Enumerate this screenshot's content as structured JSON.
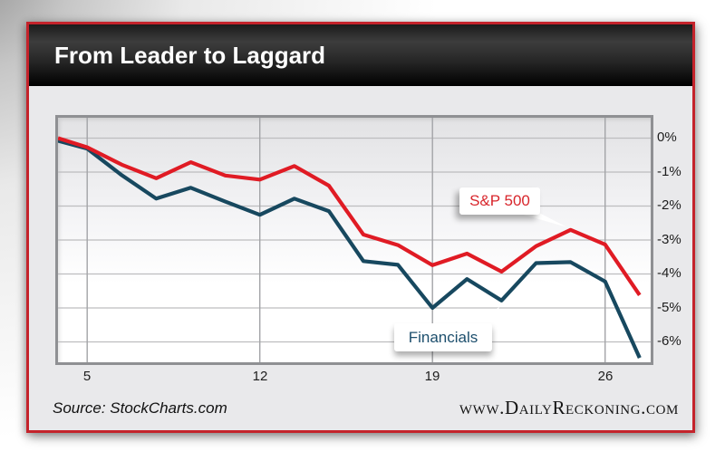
{
  "header": {
    "title": "From Leader to Laggard"
  },
  "footer": {
    "source": "Source: StockCharts.com",
    "website": "www.DailyReckoning.com"
  },
  "colors": {
    "frame_border": "#c4232b",
    "header_bg": "#1c1c1c",
    "body_bg": "#e9e9eb",
    "plot_border": "#8f9093",
    "grid_horizontal": "#bdbdbf",
    "grid_vertical": "#a3a4a7",
    "sp500_line": "#e01b24",
    "financials_line": "#17485f",
    "sp500_label": "#d8262c",
    "financials_label": "#1d4f6d"
  },
  "chart_data": {
    "type": "line",
    "title": "From Leader to Laggard",
    "xlabel": "",
    "ylabel": "",
    "x_days": [
      4,
      5,
      8,
      9,
      10,
      11,
      12,
      15,
      16,
      17,
      18,
      19,
      22,
      23,
      24,
      25,
      26,
      29
    ],
    "x_tick_labels": [
      "5",
      "12",
      "19",
      "26"
    ],
    "x_tick_days": [
      5,
      12,
      19,
      26
    ],
    "y_tick_labels": [
      "0%",
      "-1%",
      "-2%",
      "-3%",
      "-4%",
      "-5%",
      "-6%"
    ],
    "y_unit": "percent",
    "ylim": [
      -6.7,
      0.7
    ],
    "grid": true,
    "legend_position": "callout labels on chart",
    "series": [
      {
        "name": "S&P 500",
        "color": "#e01b24",
        "values": [
          0.0,
          -0.27,
          -0.78,
          -1.18,
          -0.71,
          -1.1,
          -1.22,
          -0.82,
          -1.4,
          -2.84,
          -3.15,
          -3.74,
          -3.4,
          -3.93,
          -3.18,
          -2.7,
          -3.13,
          -4.62
        ]
      },
      {
        "name": "Financials",
        "color": "#17485f",
        "values": [
          -0.08,
          -0.31,
          -1.09,
          -1.78,
          -1.46,
          -1.87,
          -2.26,
          -1.78,
          -2.15,
          -3.62,
          -3.73,
          -5.0,
          -4.15,
          -4.78,
          -3.68,
          -3.65,
          -4.22,
          -6.47
        ]
      }
    ]
  }
}
